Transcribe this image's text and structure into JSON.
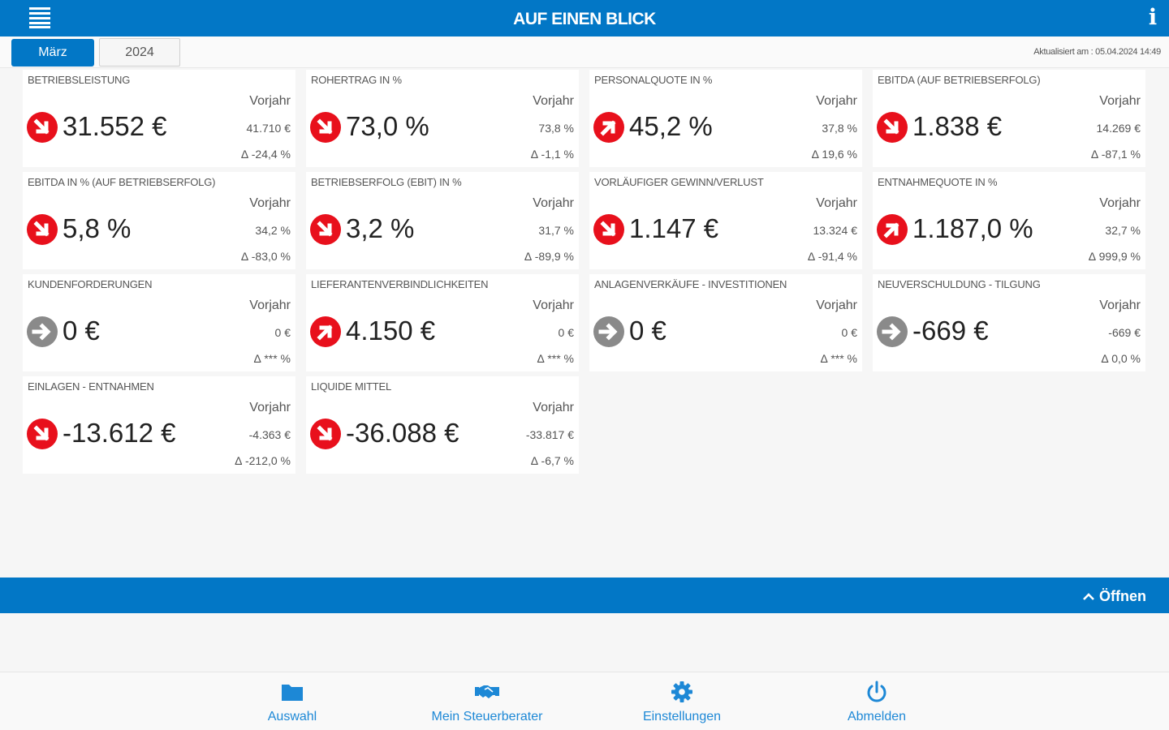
{
  "header": {
    "title": "AUF EINEN BLICK"
  },
  "toolbar": {
    "month": "März",
    "year": "2024",
    "updated": "Aktualisiert am : 05.04.2024 14:49"
  },
  "vorjahr_label": "Vorjahr",
  "cards": [
    {
      "title": "BETRIEBSLEISTUNG",
      "value": "31.552 €",
      "prev": "41.710 €",
      "delta": "∆ -24,4 %",
      "trend": "down"
    },
    {
      "title": "ROHERTRAG IN %",
      "value": "73,0 %",
      "prev": "73,8 %",
      "delta": "∆ -1,1 %",
      "trend": "down"
    },
    {
      "title": "PERSONALQUOTE IN %",
      "value": "45,2 %",
      "prev": "37,8 %",
      "delta": "∆ 19,6 %",
      "trend": "up"
    },
    {
      "title": "EBITDA (AUF BETRIEBSERFOLG)",
      "value": "1.838 €",
      "prev": "14.269 €",
      "delta": "∆ -87,1 %",
      "trend": "down"
    },
    {
      "title": "EBITDA IN % (AUF BETRIEBSERFOLG)",
      "value": "5,8 %",
      "prev": "34,2 %",
      "delta": "∆ -83,0 %",
      "trend": "down"
    },
    {
      "title": "BETRIEBSERFOLG (EBIT) IN %",
      "value": "3,2 %",
      "prev": "31,7 %",
      "delta": "∆ -89,9 %",
      "trend": "down"
    },
    {
      "title": "VORLÄUFIGER GEWINN/VERLUST",
      "value": "1.147 €",
      "prev": "13.324 €",
      "delta": "∆ -91,4 %",
      "trend": "down"
    },
    {
      "title": "ENTNAHMEQUOTE IN %",
      "value": "1.187,0 %",
      "prev": "32,7 %",
      "delta": "∆ 999,9 %",
      "trend": "up"
    },
    {
      "title": "KUNDENFORDERUNGEN",
      "value": "0 €",
      "prev": "0 €",
      "delta": "∆ *** %",
      "trend": "neutral"
    },
    {
      "title": "LIEFERANTENVERBINDLICHKEITEN",
      "value": "4.150 €",
      "prev": "0 €",
      "delta": "∆ *** %",
      "trend": "up"
    },
    {
      "title": "ANLAGENVERKÄUFE - INVESTITIONEN",
      "value": "0 €",
      "prev": "0 €",
      "delta": "∆ *** %",
      "trend": "neutral"
    },
    {
      "title": "NEUVERSCHULDUNG - TILGUNG",
      "value": "-669 €",
      "prev": "-669 €",
      "delta": "∆ 0,0 %",
      "trend": "neutral"
    },
    {
      "title": "EINLAGEN - ENTNAHMEN",
      "value": "-13.612 €",
      "prev": "-4.363 €",
      "delta": "∆ -212,0 %",
      "trend": "down"
    },
    {
      "title": "LIQUIDE MITTEL",
      "value": "-36.088 €",
      "prev": "-33.817 €",
      "delta": "∆ -6,7 %",
      "trend": "down"
    }
  ],
  "drawer": {
    "open_label": "Öffnen"
  },
  "nav": [
    {
      "label": "Auswahl",
      "icon": "folder-icon"
    },
    {
      "label": "Mein Steuerberater",
      "icon": "handshake-icon"
    },
    {
      "label": "Einstellungen",
      "icon": "gear-icon"
    },
    {
      "label": "Abmelden",
      "icon": "power-icon"
    }
  ],
  "colors": {
    "brand": "#0277c6",
    "trend_bad": "#e8101c",
    "trend_neutral": "#8a8a8a",
    "nav_text": "#1d88d6"
  }
}
